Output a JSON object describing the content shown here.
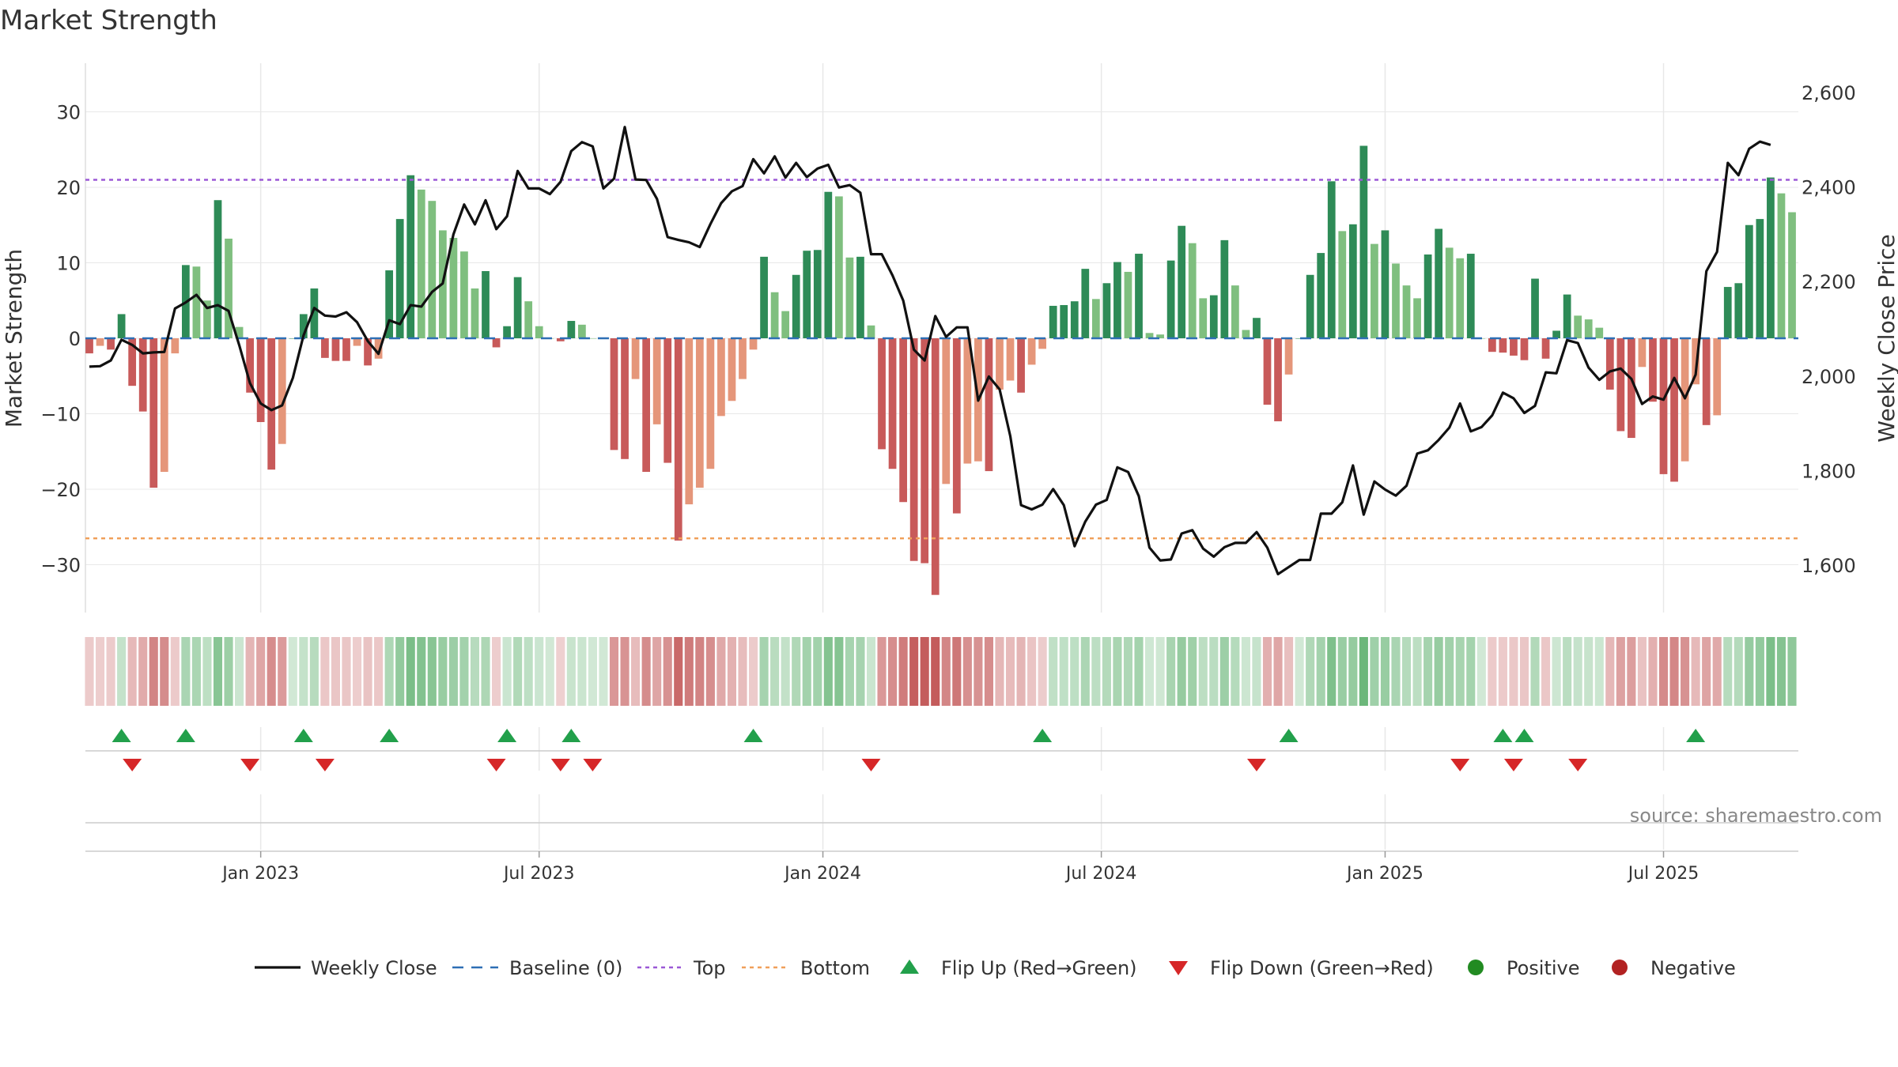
{
  "chart_data": {
    "type": "bar",
    "title": "Market Strength",
    "ylabel_left": "Market Strength",
    "ylabel_right": "Weekly Close Price",
    "source": "source: sharemaestro.com",
    "ylim_left": [
      -37,
      36
    ],
    "ylim_right": [
      1500,
      2650
    ],
    "yticks_left": [
      {
        "value": 30,
        "label": "30"
      },
      {
        "value": 20,
        "label": "20"
      },
      {
        "value": 10,
        "label": "10"
      },
      {
        "value": 0,
        "label": "0"
      },
      {
        "value": -10,
        "label": "−10"
      },
      {
        "value": -20,
        "label": "−20"
      },
      {
        "value": -30,
        "label": "−30"
      }
    ],
    "yticks_right": [
      {
        "value": 2600,
        "label": "2,600"
      },
      {
        "value": 2400,
        "label": "2,400"
      },
      {
        "value": 2200,
        "label": "2,200"
      },
      {
        "value": 2000,
        "label": "2,000"
      },
      {
        "value": 1800,
        "label": "1,800"
      },
      {
        "value": 1600,
        "label": "1,600"
      }
    ],
    "xticks": [
      {
        "week": 16,
        "label": "Jan 2023"
      },
      {
        "week": 42,
        "label": "Jul 2023"
      },
      {
        "week": 68.5,
        "label": "Jan 2024"
      },
      {
        "week": 94.5,
        "label": "Jul 2024"
      },
      {
        "week": 121,
        "label": "Jan 2025"
      },
      {
        "week": 147,
        "label": "Jul 2025"
      }
    ],
    "top_line": 21,
    "bottom_line": -26.5,
    "strength": [
      -2,
      -1,
      -1.5,
      3.2,
      -6.3,
      -9.7,
      -19.8,
      -17.7,
      -2,
      9.7,
      9.5,
      5,
      18.3,
      13.2,
      1.5,
      -7.2,
      -11.1,
      -17.4,
      -14,
      0,
      3.2,
      6.6,
      -2.6,
      -3,
      -3,
      -1,
      -3.6,
      -2.7,
      9,
      15.8,
      21.6,
      19.7,
      18.2,
      14.3,
      13.3,
      11.5,
      6.6,
      8.9,
      -1.2,
      1.6,
      8.1,
      4.9,
      1.6,
      0,
      -0.4,
      2.3,
      1.8,
      0,
      0,
      -14.8,
      -16,
      -5.4,
      -17.7,
      -11.4,
      -16.5,
      -26.8,
      -22,
      -19.8,
      -17.3,
      -10.3,
      -8.3,
      -5.4,
      -1.5,
      10.8,
      6.1,
      3.6,
      8.4,
      11.6,
      11.7,
      19.4,
      18.8,
      10.7,
      10.8,
      1.7,
      -14.7,
      -17.3,
      -21.7,
      -29.5,
      -29.8,
      -34,
      -19.3,
      -23.2,
      -16.6,
      -16.3,
      -17.6,
      -6.8,
      -5.6,
      -7.2,
      -3.5,
      -1.4,
      4.3,
      4.4,
      4.9,
      9.2,
      5.2,
      7.3,
      10.1,
      8.8,
      11.2,
      0.7,
      0.5,
      10.3,
      14.9,
      12.6,
      5.3,
      5.7,
      13,
      7,
      1.1,
      2.7,
      -8.8,
      -11,
      -4.8,
      0,
      8.4,
      11.3,
      20.8,
      14.2,
      15.1,
      25.5,
      12.5,
      14.3,
      9.9,
      7,
      5.3,
      11.1,
      14.5,
      12,
      10.6,
      11.2,
      0,
      -1.8,
      -1.9,
      -2.3,
      -2.9,
      7.9,
      -2.7,
      1,
      5.8,
      3,
      2.5,
      1.4,
      -6.8,
      -12.3,
      -13.2,
      -3.8,
      -8.4,
      -18,
      -19,
      -16.3,
      -6.1,
      -11.5,
      -10.2,
      6.8,
      7.3,
      15,
      15.8,
      21.3,
      19.2,
      16.7
    ],
    "weekly_close": [
      2020,
      2021,
      2033,
      2077,
      2066,
      2048,
      2050,
      2051,
      2143,
      2156,
      2172,
      2144,
      2150,
      2138,
      2065,
      1985,
      1942,
      1928,
      1938,
      1996,
      2086,
      2144,
      2128,
      2126,
      2135,
      2114,
      2074,
      2047,
      2118,
      2110,
      2150,
      2147,
      2178,
      2196,
      2300,
      2363,
      2321,
      2372,
      2311,
      2338,
      2434,
      2397,
      2397,
      2385,
      2411,
      2476,
      2495,
      2486,
      2397,
      2418,
      2527,
      2416,
      2415,
      2375,
      2294,
      2288,
      2283,
      2273,
      2322,
      2366,
      2391,
      2402,
      2459,
      2429,
      2465,
      2420,
      2451,
      2421,
      2439,
      2447,
      2399,
      2404,
      2388,
      2258,
      2258,
      2213,
      2160,
      2056,
      2033,
      2127,
      2083,
      2103,
      2103,
      1948,
      1999,
      1972,
      1873,
      1727,
      1718,
      1728,
      1761,
      1727,
      1640,
      1692,
      1728,
      1738,
      1807,
      1797,
      1746,
      1637,
      1610,
      1612,
      1667,
      1674,
      1635,
      1618,
      1638,
      1647,
      1647,
      1670,
      1637,
      1581,
      1596,
      1611,
      1611,
      1709,
      1709,
      1733,
      1811,
      1707,
      1777,
      1760,
      1747,
      1768,
      1836,
      1843,
      1865,
      1891,
      1942,
      1883,
      1892,
      1917,
      1965,
      1953,
      1922,
      1937,
      2008,
      2006,
      2076,
      2070,
      2018,
      1992,
      2010,
      2016,
      1994,
      1941,
      1957,
      1950,
      1996,
      1953,
      2003,
      2222,
      2263,
      2451,
      2425,
      2481,
      2496,
      2489
    ],
    "flip_up_weeks": [
      3,
      9,
      20,
      28,
      39,
      45,
      62,
      89,
      112,
      132,
      134,
      150
    ],
    "flip_down_weeks": [
      4,
      15,
      22,
      38,
      44,
      47,
      73,
      109,
      128,
      133,
      139
    ],
    "legend": [
      {
        "key": "line",
        "label": "Weekly Close"
      },
      {
        "key": "baseline",
        "label": "Baseline (0)"
      },
      {
        "key": "top",
        "label": "Top"
      },
      {
        "key": "bottom",
        "label": "Bottom"
      },
      {
        "key": "flipup",
        "label": "Flip Up (Red→Green)"
      },
      {
        "key": "flipdown",
        "label": "Flip Down (Green→Red)"
      },
      {
        "key": "positive",
        "label": "Positive"
      },
      {
        "key": "negative",
        "label": "Negative"
      }
    ],
    "colors": {
      "pos_dark": "#2e8b57",
      "pos_light": "#7fbf7f",
      "neg_dark": "#c85a5a",
      "neg_light": "#e5967a",
      "line": "#111111",
      "baseline": "#2e6fb5",
      "top": "#9b59d6",
      "bottom": "#f0a05a",
      "flip_up": "#22a04b",
      "flip_down": "#d62728",
      "positive": "#228b22",
      "negative": "#b22222",
      "grid": "#e8e8e8",
      "text": "#333333"
    }
  }
}
